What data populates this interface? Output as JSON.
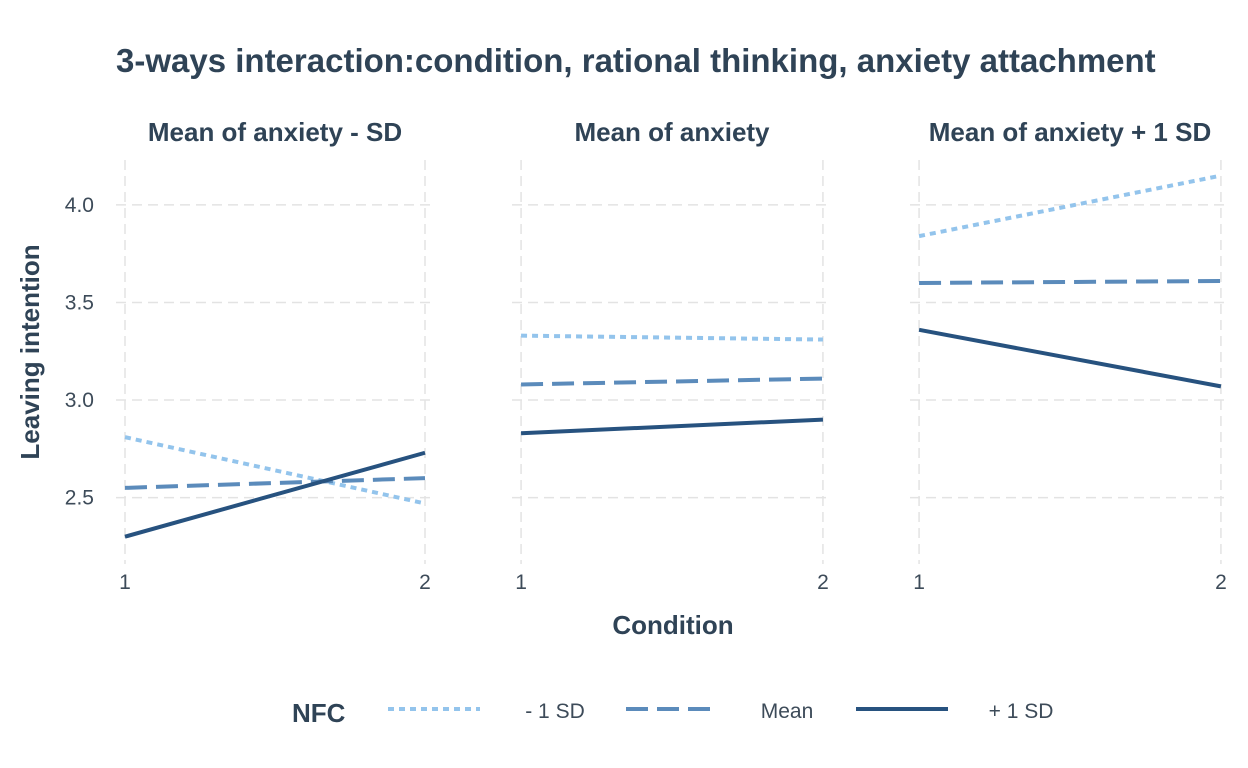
{
  "chart_data": {
    "type": "line",
    "title": "3-ways interaction:condition, rational thinking, anxiety attachment",
    "xlabel": "Condition",
    "ylabel": "Leaving intention",
    "x": [
      1,
      2
    ],
    "x_tick_labels": [
      "1",
      "2"
    ],
    "xlim": [
      0.97,
      2.03
    ],
    "ylim": [
      2.16,
      4.23
    ],
    "y_ticks": [
      2.5,
      3.0,
      3.5,
      4.0
    ],
    "y_tick_labels": [
      "2.5",
      "3.0",
      "3.5",
      "4.0"
    ],
    "grid": true,
    "legend": {
      "title": "NFC",
      "placement": "bottom",
      "entries": [
        "- 1 SD",
        "Mean",
        "+ 1 SD"
      ]
    },
    "styles": {
      "- 1 SD": {
        "color": "#93c4ec",
        "dash": "dotted"
      },
      "Mean": {
        "color": "#5b8bbb",
        "dash": "dashed"
      },
      "+ 1 SD": {
        "color": "#27527f",
        "dash": "solid"
      }
    },
    "panels": [
      {
        "title": "Mean of anxiety - SD",
        "series": [
          {
            "name": "- 1 SD",
            "values": [
              2.81,
              2.47
            ]
          },
          {
            "name": "Mean",
            "values": [
              2.55,
              2.6
            ]
          },
          {
            "name": "+ 1 SD",
            "values": [
              2.3,
              2.73
            ]
          }
        ]
      },
      {
        "title": "Mean of anxiety",
        "series": [
          {
            "name": "- 1 SD",
            "values": [
              3.33,
              3.31
            ]
          },
          {
            "name": "Mean",
            "values": [
              3.08,
              3.11
            ]
          },
          {
            "name": "+ 1 SD",
            "values": [
              2.83,
              2.9
            ]
          }
        ]
      },
      {
        "title": "Mean of anxiety + 1 SD",
        "series": [
          {
            "name": "- 1 SD",
            "values": [
              3.84,
              4.15
            ]
          },
          {
            "name": "Mean",
            "values": [
              3.6,
              3.61
            ]
          },
          {
            "name": "+ 1 SD",
            "values": [
              3.36,
              3.07
            ]
          }
        ]
      }
    ]
  }
}
